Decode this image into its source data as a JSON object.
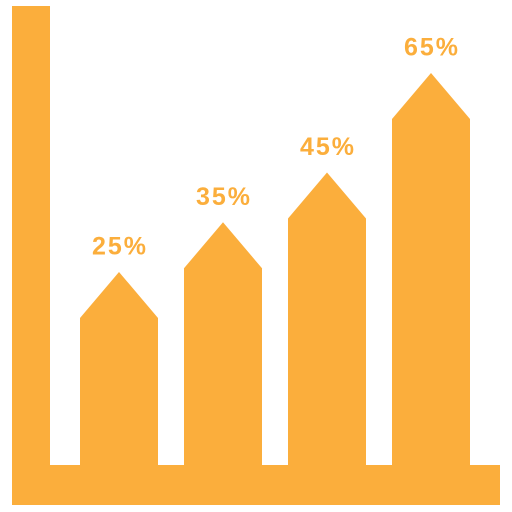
{
  "chart_data": {
    "type": "bar",
    "categories": [
      null,
      null,
      null,
      null
    ],
    "values": [
      25,
      35,
      45,
      65
    ],
    "value_labels": [
      "25%",
      "35%",
      "45%",
      "65%"
    ],
    "color": "#fbae3c"
  }
}
